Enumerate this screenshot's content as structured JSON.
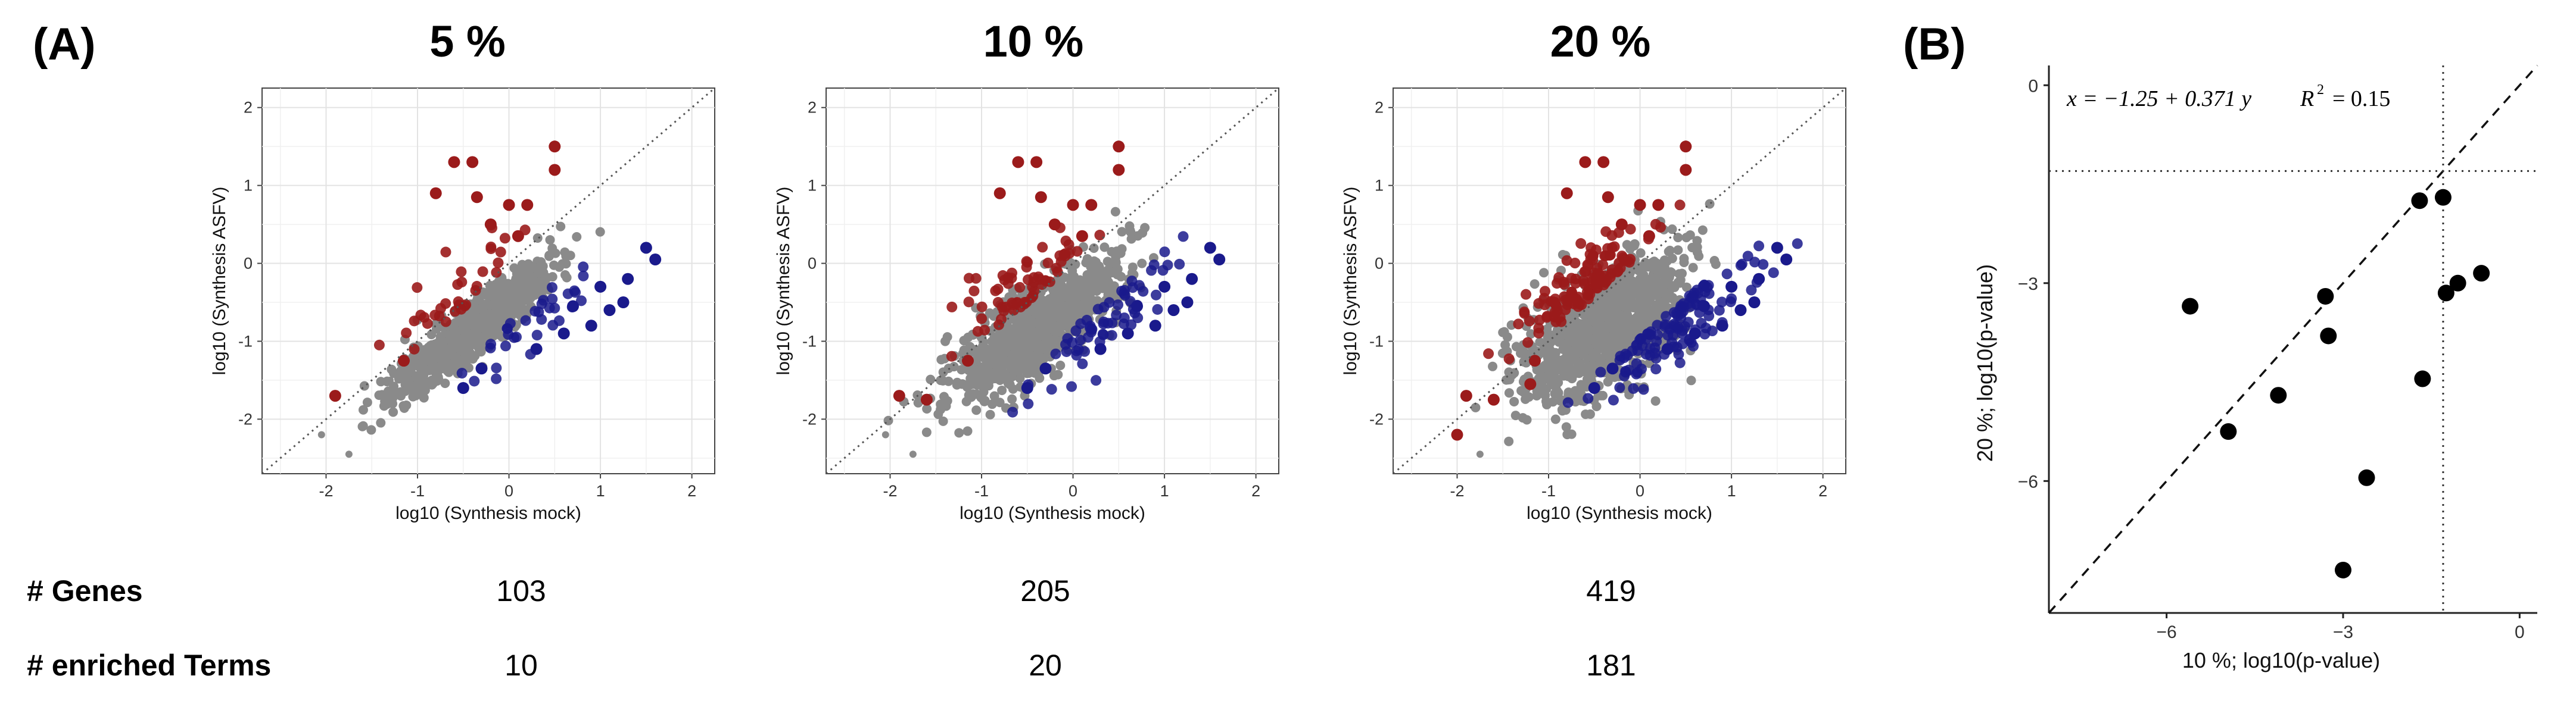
{
  "panel_a_label": "(A)",
  "panel_b_label": "(B)",
  "row_labels": {
    "genes": "# Genes",
    "terms": "# enriched Terms"
  },
  "chart_data": [
    {
      "type": "scatter",
      "title": "5 %",
      "xlabel": "log10 (Synthesis mock)",
      "ylabel": "log10 (Synthesis ASFV)",
      "xlim": [
        -2.7,
        2.25
      ],
      "ylim": [
        -2.7,
        2.25
      ],
      "xticks": [
        -2,
        -1,
        0,
        1,
        2
      ],
      "yticks": [
        -2,
        -1,
        0,
        1,
        2
      ],
      "reference_line": "y = x (dotted)",
      "n_genes": "103",
      "n_terms": "10",
      "up_points": [
        [
          -0.6,
          1.3
        ],
        [
          -0.4,
          1.3
        ],
        [
          0.5,
          1.5
        ],
        [
          0.5,
          1.2
        ],
        [
          -0.8,
          0.9
        ],
        [
          -0.35,
          0.85
        ],
        [
          0,
          0.75
        ],
        [
          0.2,
          0.75
        ],
        [
          -1.15,
          -1.25
        ],
        [
          -1.9,
          -1.7
        ],
        [
          -0.2,
          0.5
        ],
        [
          0.1,
          0.35
        ]
      ],
      "down_points": [
        [
          1.6,
          0.05
        ],
        [
          1.5,
          0.2
        ],
        [
          1.25,
          -0.5
        ],
        [
          1.0,
          -0.3
        ],
        [
          0.9,
          -0.8
        ],
        [
          1.1,
          -0.6
        ],
        [
          0.7,
          -0.55
        ],
        [
          1.3,
          -0.2
        ],
        [
          -0.5,
          -1.6
        ],
        [
          -0.3,
          -1.35
        ],
        [
          0.3,
          -1.1
        ],
        [
          0.6,
          -0.9
        ]
      ],
      "outlier_points": [
        [
          -2.05,
          -2.2
        ],
        [
          -1.75,
          -2.45
        ],
        [
          -1.3,
          -1.5
        ]
      ]
    },
    {
      "type": "scatter",
      "title": "10 %",
      "xlabel": "log10 (Synthesis mock)",
      "ylabel": "log10 (Synthesis ASFV)",
      "xlim": [
        -2.7,
        2.25
      ],
      "ylim": [
        -2.7,
        2.25
      ],
      "xticks": [
        -2,
        -1,
        0,
        1,
        2
      ],
      "yticks": [
        -2,
        -1,
        0,
        1,
        2
      ],
      "reference_line": "y = x (dotted)",
      "n_genes": "205",
      "n_terms": "20",
      "up_points": [
        [
          -0.6,
          1.3
        ],
        [
          -0.4,
          1.3
        ],
        [
          0.5,
          1.5
        ],
        [
          0.5,
          1.2
        ],
        [
          -0.8,
          0.9
        ],
        [
          -0.35,
          0.85
        ],
        [
          0,
          0.75
        ],
        [
          0.2,
          0.75
        ],
        [
          -1.15,
          -1.25
        ],
        [
          -1.9,
          -1.7
        ],
        [
          -1.6,
          -1.75
        ],
        [
          -0.2,
          0.5
        ],
        [
          0.1,
          0.35
        ]
      ],
      "down_points": [
        [
          1.6,
          0.05
        ],
        [
          1.5,
          0.2
        ],
        [
          1.25,
          -0.5
        ],
        [
          1.0,
          -0.3
        ],
        [
          0.9,
          -0.8
        ],
        [
          1.1,
          -0.6
        ],
        [
          0.7,
          -0.55
        ],
        [
          1.3,
          -0.2
        ],
        [
          -0.5,
          -1.6
        ],
        [
          -0.3,
          -1.35
        ],
        [
          0.3,
          -1.1
        ],
        [
          0.6,
          -0.9
        ]
      ],
      "outlier_points": [
        [
          -2.05,
          -2.2
        ],
        [
          -1.75,
          -2.45
        ]
      ]
    },
    {
      "type": "scatter",
      "title": "20 %",
      "xlabel": "log10 (Synthesis mock)",
      "ylabel": "log10 (Synthesis ASFV)",
      "xlim": [
        -2.7,
        2.25
      ],
      "ylim": [
        -2.7,
        2.25
      ],
      "xticks": [
        -2,
        -1,
        0,
        1,
        2
      ],
      "yticks": [
        -2,
        -1,
        0,
        1,
        2
      ],
      "reference_line": "y = x (dotted)",
      "n_genes": "419",
      "n_terms": "181",
      "up_points": [
        [
          -0.6,
          1.3
        ],
        [
          -0.4,
          1.3
        ],
        [
          0.5,
          1.5
        ],
        [
          0.5,
          1.2
        ],
        [
          -0.8,
          0.9
        ],
        [
          -0.35,
          0.85
        ],
        [
          0,
          0.75
        ],
        [
          0.2,
          0.75
        ],
        [
          -1.15,
          -1.25
        ],
        [
          -1.9,
          -1.7
        ],
        [
          -1.6,
          -1.75
        ],
        [
          -2.0,
          -2.2
        ],
        [
          -1.2,
          -1.55
        ],
        [
          -0.2,
          0.5
        ],
        [
          0.1,
          0.35
        ]
      ],
      "down_points": [
        [
          1.6,
          0.05
        ],
        [
          1.5,
          0.2
        ],
        [
          1.25,
          -0.5
        ],
        [
          1.0,
          -0.3
        ],
        [
          0.9,
          -0.8
        ],
        [
          1.1,
          -0.6
        ],
        [
          0.7,
          -0.55
        ],
        [
          1.3,
          -0.2
        ],
        [
          -0.5,
          -1.6
        ],
        [
          -0.3,
          -1.35
        ],
        [
          0.3,
          -1.1
        ],
        [
          0.6,
          -0.9
        ]
      ],
      "outlier_points": [
        [
          -1.75,
          -2.45
        ]
      ]
    },
    {
      "type": "scatter",
      "title": "",
      "xlabel": "10 %; log10(p-value)",
      "ylabel": "20 %; log10(p-value)",
      "xlim": [
        -8.0,
        0.3
      ],
      "ylim": [
        -8.0,
        0.3
      ],
      "xticks": [
        -6,
        -3,
        0
      ],
      "yticks": [
        -6,
        -3,
        0
      ],
      "equation": "x = −1.25 + 0.371 y",
      "r2_label": "R",
      "r2_value": "= 0.15",
      "fit_line": {
        "slope": 0.371,
        "intercept": -1.25,
        "style": "dashed"
      },
      "threshold": -1.3,
      "points": [
        [
          -5.6,
          -3.35
        ],
        [
          -4.95,
          -5.25
        ],
        [
          -4.1,
          -4.7
        ],
        [
          -3.3,
          -3.2
        ],
        [
          -3.25,
          -3.8
        ],
        [
          -3.0,
          -7.35
        ],
        [
          -2.6,
          -5.95
        ],
        [
          -1.7,
          -1.75
        ],
        [
          -1.65,
          -4.45
        ],
        [
          -1.3,
          -1.7
        ],
        [
          -1.25,
          -3.15
        ],
        [
          -1.05,
          -3.0
        ],
        [
          -0.65,
          -2.85
        ]
      ]
    }
  ]
}
